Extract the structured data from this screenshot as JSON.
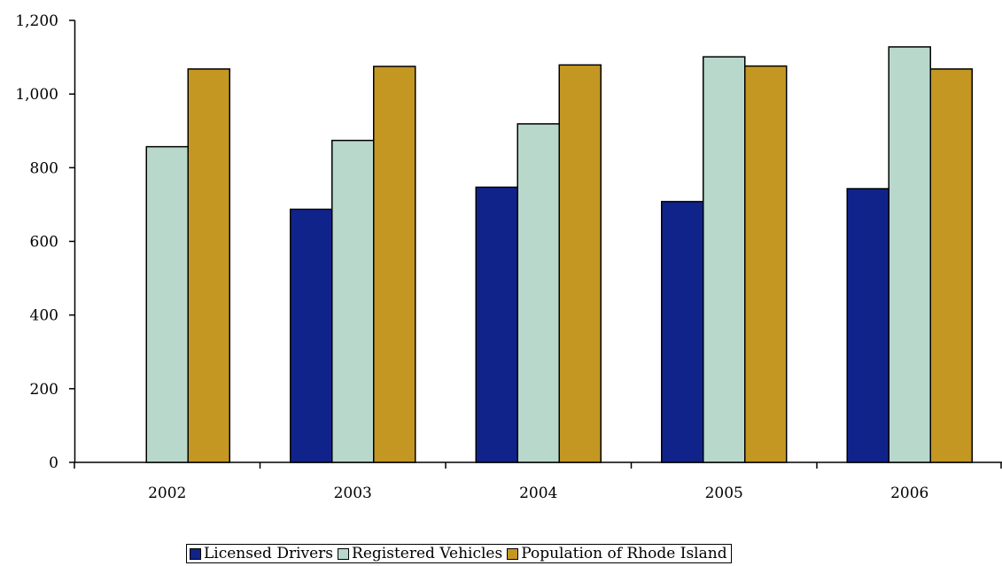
{
  "chart_data": {
    "type": "bar",
    "title": "",
    "xlabel": "",
    "ylabel": "",
    "categories": [
      "2002",
      "2003",
      "2004",
      "2005",
      "2006"
    ],
    "ylim": [
      0,
      1200
    ],
    "yticks": [
      0,
      200,
      400,
      600,
      800,
      1000,
      1200
    ],
    "ytick_labels": [
      "0",
      "200",
      "400",
      "600",
      "800",
      "1,000",
      "1,200"
    ],
    "grid": false,
    "legend_position": "bottom",
    "series": [
      {
        "name": "Licensed Drivers",
        "color": "#10238a",
        "values": [
          null,
          687,
          747,
          708,
          743
        ]
      },
      {
        "name": "Registered Vehicles",
        "color": "#b8d8cc",
        "values": [
          857,
          874,
          919,
          1101,
          1128
        ]
      },
      {
        "name": "Population of Rhode Island",
        "color": "#c49722",
        "values": [
          1068,
          1075,
          1079,
          1076,
          1068
        ]
      }
    ]
  }
}
